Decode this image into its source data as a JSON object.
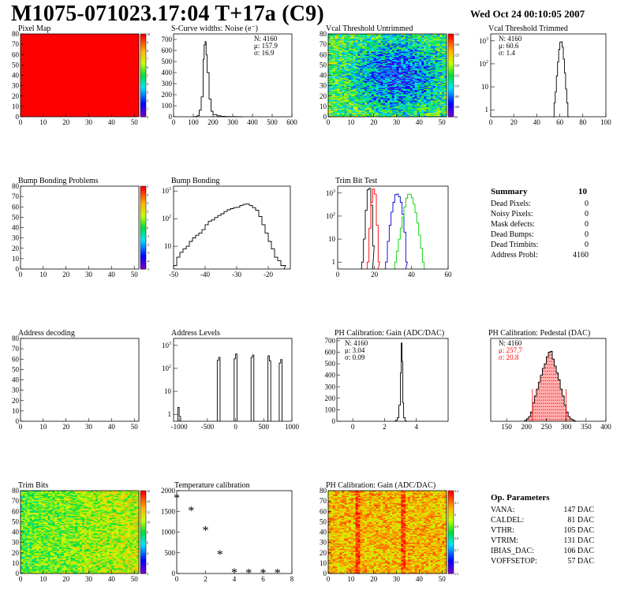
{
  "header": {
    "title": "M1075-071023.17:04 T+17a (C9)",
    "date": "Wed Oct 24 00:10:05 2007"
  },
  "colors": {
    "red": "#ff0000",
    "blue": "#0000cc",
    "green": "#00cc00",
    "pink": "#ffb0b0"
  },
  "chart_data": [
    {
      "id": "pixel-map",
      "type": "heatmap",
      "title": "Pixel Map",
      "xlim": [
        0,
        52
      ],
      "ylim": [
        0,
        80
      ],
      "xticks": [
        "0",
        "10",
        "20",
        "30",
        "40",
        "50"
      ],
      "yticks": [
        "0",
        "10",
        "20",
        "30",
        "40",
        "50",
        "60",
        "70",
        "80"
      ],
      "zlim": [
        0,
        10
      ],
      "zticks": [
        "0",
        "1",
        "2",
        "3",
        "4",
        "5",
        "6",
        "7",
        "8",
        "9",
        "10"
      ],
      "fill": "uniform-max"
    },
    {
      "id": "noise",
      "type": "histogram",
      "title": "S-Curve widths: Noise (e⁻)",
      "xlim": [
        0,
        600
      ],
      "ylim": [
        0,
        750
      ],
      "xticks": [
        "0",
        "100",
        "200",
        "300",
        "400",
        "500",
        "600"
      ],
      "yticks": [
        "0",
        "100",
        "200",
        "300",
        "400",
        "500",
        "600",
        "700"
      ],
      "stats": [
        "N: 4160",
        "μ: 157.9",
        "σ: 16.9"
      ],
      "series": [
        {
          "x": [
            100,
            110,
            120,
            130,
            140,
            150,
            155,
            160,
            165,
            170,
            180,
            190,
            200,
            220,
            240,
            260,
            280,
            300,
            320,
            340
          ],
          "y": [
            0,
            2,
            10,
            60,
            180,
            520,
            650,
            680,
            560,
            400,
            160,
            50,
            20,
            8,
            4,
            2,
            1,
            1,
            0,
            0
          ]
        }
      ]
    },
    {
      "id": "vcal-untrimmed",
      "type": "heatmap",
      "title": "Vcal Threshold Untrimmed",
      "xlim": [
        0,
        52
      ],
      "ylim": [
        0,
        80
      ],
      "xticks": [
        "0",
        "10",
        "20",
        "30",
        "40",
        "50"
      ],
      "yticks": [
        "0",
        "10",
        "20",
        "30",
        "40",
        "50",
        "60",
        "70",
        "80"
      ],
      "zticks": [
        "95",
        "100",
        "105",
        "110",
        "115",
        "120",
        "125",
        "130",
        "135"
      ]
    },
    {
      "id": "vcal-trimmed",
      "type": "histogram",
      "title": "Vcal Threshold Trimmed",
      "log_y": true,
      "xlim": [
        0,
        100
      ],
      "ylim": [
        0.5,
        2000
      ],
      "xticks": [
        "0",
        "20",
        "40",
        "60",
        "80",
        "100"
      ],
      "stats": [
        "N: 4160",
        "μ: 60.6",
        "σ:  1.4"
      ],
      "series": [
        {
          "x": [
            54,
            55,
            56,
            57,
            58,
            59,
            60,
            61,
            62,
            63,
            64,
            65,
            66,
            67
          ],
          "y": [
            0.5,
            2,
            6,
            30,
            120,
            420,
            880,
            900,
            530,
            160,
            40,
            8,
            2,
            0.5
          ]
        }
      ]
    },
    {
      "id": "bump-problems",
      "type": "heatmap",
      "title": "Bump Bonding Problems",
      "xlim": [
        0,
        52
      ],
      "ylim": [
        0,
        80
      ],
      "xticks": [
        "0",
        "10",
        "20",
        "30",
        "40",
        "50"
      ],
      "yticks": [
        "0",
        "10",
        "20",
        "30",
        "40",
        "50",
        "60",
        "70",
        "80"
      ],
      "zticks": [
        "-5",
        "-4",
        "-3",
        "-2",
        "-1",
        "0",
        "1",
        "2",
        "3",
        "4",
        "5"
      ],
      "fill": "empty"
    },
    {
      "id": "bump-bonding",
      "type": "histogram",
      "title": "Bump Bonding",
      "log_y": true,
      "xlim": [
        -50,
        -13
      ],
      "ylim": [
        1.5,
        1500
      ],
      "xticks": [
        "-50",
        "-40",
        "-30",
        "-20"
      ],
      "series": [
        {
          "x": [
            -50,
            -49,
            -48,
            -47,
            -46,
            -45,
            -44,
            -43,
            -42,
            -41,
            -40,
            -39,
            -38,
            -37,
            -36,
            -35,
            -34,
            -33,
            -32,
            -31,
            -30,
            -29,
            -28,
            -27,
            -26,
            -25,
            -24,
            -23,
            -22,
            -21,
            -20,
            -19,
            -18,
            -17,
            -16,
            -15
          ],
          "y": [
            2,
            4,
            6,
            8,
            10,
            15,
            20,
            25,
            30,
            40,
            60,
            80,
            90,
            110,
            130,
            150,
            180,
            210,
            230,
            250,
            260,
            300,
            330,
            340,
            300,
            250,
            200,
            120,
            60,
            30,
            15,
            8,
            4,
            3,
            2,
            2
          ]
        }
      ]
    },
    {
      "id": "trim-bit-test",
      "type": "histogram",
      "title": "Trim Bit Test",
      "log_y": true,
      "xlim": [
        0,
        60
      ],
      "ylim": [
        0.5,
        2000
      ],
      "xticks": [
        "0",
        "20",
        "40",
        "60"
      ],
      "series": [
        {
          "color": "#000000",
          "x": [
            13,
            14,
            15,
            16,
            17,
            18,
            19
          ],
          "y": [
            1,
            10,
            180,
            1400,
            1600,
            300,
            5
          ]
        },
        {
          "color": "#ff0000",
          "x": [
            16,
            17,
            18,
            19,
            20,
            21,
            22
          ],
          "y": [
            1,
            30,
            400,
            1500,
            900,
            40,
            1
          ]
        },
        {
          "color": "#0000cc",
          "x": [
            26,
            27,
            28,
            29,
            30,
            31,
            32,
            33,
            34,
            35,
            36,
            37
          ],
          "y": [
            1,
            8,
            40,
            150,
            400,
            850,
            900,
            700,
            400,
            120,
            20,
            1
          ]
        },
        {
          "color": "#00cc00",
          "x": [
            31,
            32,
            33,
            34,
            35,
            36,
            37,
            38,
            39,
            40,
            41,
            42,
            43,
            44,
            45,
            46,
            47
          ],
          "y": [
            1,
            3,
            10,
            30,
            90,
            250,
            600,
            900,
            880,
            620,
            330,
            140,
            50,
            15,
            4,
            1,
            0.5
          ]
        }
      ]
    },
    {
      "id": "address-decoding",
      "type": "heatmap",
      "title": "Address decoding",
      "xlim": [
        0,
        52
      ],
      "ylim": [
        0,
        80
      ],
      "xticks": [
        "0",
        "10",
        "20",
        "30",
        "40",
        "50"
      ],
      "yticks": [
        "0",
        "10",
        "20",
        "30",
        "40",
        "50",
        "60",
        "70",
        "80"
      ],
      "fill": "empty"
    },
    {
      "id": "address-levels",
      "type": "histogram",
      "title": "Address Levels",
      "log_y": true,
      "xlim": [
        -1100,
        1000
      ],
      "ylim": [
        0.5,
        2000
      ],
      "xticks": [
        "-1000",
        "-500",
        "0",
        "500",
        "1000"
      ],
      "peaks": [
        -1000,
        -300,
        0,
        300,
        600,
        800
      ],
      "peak_heights": [
        [
          2,
          0.8
        ],
        [
          220,
          300
        ],
        [
          260,
          420
        ],
        [
          300,
          380
        ],
        [
          350,
          210
        ],
        [
          170,
          240
        ]
      ]
    },
    {
      "id": "ph-gain",
      "type": "histogram",
      "title": "PH Calibration: Gain (ADC/DAC)",
      "xlim": [
        -1,
        6
      ],
      "ylim": [
        0,
        720
      ],
      "xticks": [
        "0",
        "2",
        "4"
      ],
      "yticks": [
        "0",
        "100",
        "200",
        "300",
        "400",
        "500",
        "600",
        "700"
      ],
      "stats": [
        "N: 4160",
        "μ: 3.04",
        "σ: 0.09"
      ],
      "series": [
        {
          "x": [
            2.6,
            2.7,
            2.8,
            2.9,
            3.0,
            3.05,
            3.1,
            3.15,
            3.2,
            3.3
          ],
          "y": [
            0,
            8,
            30,
            140,
            420,
            680,
            520,
            160,
            30,
            2
          ]
        }
      ]
    },
    {
      "id": "ph-pedestal",
      "type": "histogram",
      "title": "PH Calibration: Pedestal (DAC)",
      "xlim": [
        110,
        400
      ],
      "ylim": [
        0,
        180
      ],
      "xticks": [
        "150",
        "200",
        "250",
        "300",
        "350",
        "400"
      ],
      "stats": [
        "N: 4160",
        "μ: 257.7",
        "σ: 20.8"
      ],
      "stats_colors": [
        "#000000",
        "#ff0000",
        "#ff0000"
      ],
      "fit_lines": [
        215,
        300
      ],
      "series": [
        {
          "x": [
            195,
            200,
            205,
            210,
            215,
            220,
            225,
            230,
            235,
            240,
            245,
            250,
            255,
            260,
            265,
            270,
            275,
            280,
            285,
            290,
            295,
            300,
            305,
            310,
            315,
            320
          ],
          "y": [
            2,
            5,
            10,
            20,
            40,
            55,
            70,
            85,
            100,
            115,
            125,
            140,
            150,
            152,
            135,
            120,
            105,
            90,
            70,
            55,
            35,
            20,
            10,
            5,
            3,
            1
          ]
        }
      ]
    },
    {
      "id": "trim-bits",
      "type": "heatmap",
      "title": "Trim Bits",
      "xlim": [
        0,
        52
      ],
      "ylim": [
        0,
        80
      ],
      "xticks": [
        "0",
        "10",
        "20",
        "30",
        "40",
        "50"
      ],
      "yticks": [
        "0",
        "10",
        "20",
        "30",
        "40",
        "50",
        "60",
        "70",
        "80"
      ],
      "zticks": [
        "0",
        "2",
        "4",
        "6",
        "8",
        "10",
        "12",
        "14",
        "16"
      ]
    },
    {
      "id": "temperature",
      "type": "scatter",
      "title": "Temperature calibration",
      "xlim": [
        0,
        8
      ],
      "ylim": [
        0,
        2000
      ],
      "xticks": [
        "0",
        "2",
        "4",
        "6",
        "8"
      ],
      "yticks": [
        "0",
        "500",
        "1000",
        "1500",
        "2000"
      ],
      "series": [
        {
          "x": [
            0,
            1,
            2,
            3,
            4,
            5,
            6,
            7
          ],
          "y": [
            1820,
            1510,
            1040,
            460,
            15,
            10,
            8,
            10
          ]
        }
      ]
    },
    {
      "id": "ph-gain-map",
      "type": "heatmap",
      "title": "PH Calibration: Gain (ADC/DAC)",
      "xlim": [
        0,
        52
      ],
      "ylim": [
        0,
        80
      ],
      "xticks": [
        "0",
        "10",
        "20",
        "30",
        "40",
        "50"
      ],
      "yticks": [
        "0",
        "10",
        "20",
        "30",
        "40",
        "50",
        "60",
        "70",
        "80"
      ],
      "zticks": [
        "2.5",
        "2.6",
        "2.7",
        "2.8",
        "2.9",
        "3",
        "3.1",
        "3.2"
      ]
    }
  ],
  "summary": {
    "title": "Summary",
    "value": "10",
    "rows": [
      {
        "label": "Dead Pixels:",
        "value": "0"
      },
      {
        "label": "Noisy Pixels:",
        "value": "0"
      },
      {
        "label": "Mask defects:",
        "value": "0"
      },
      {
        "label": "Dead Bumps:",
        "value": "0"
      },
      {
        "label": "Dead Trimbits:",
        "value": "0"
      },
      {
        "label": "Address Probl:",
        "value": "4160"
      }
    ]
  },
  "op_params": {
    "title": "Op. Parameters",
    "rows": [
      {
        "label": "VANA:",
        "value": "147 DAC"
      },
      {
        "label": "CALDEL:",
        "value": "81 DAC"
      },
      {
        "label": "VTHR:",
        "value": "105 DAC"
      },
      {
        "label": "VTRIM:",
        "value": "131 DAC"
      },
      {
        "label": "IBIAS_DAC:",
        "value": "106 DAC"
      },
      {
        "label": "VOFFSETOP:",
        "value": "57 DAC"
      }
    ]
  }
}
